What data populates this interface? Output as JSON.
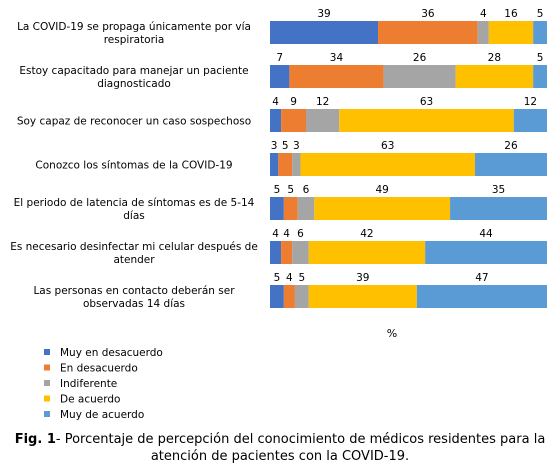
{
  "chart_data": {
    "type": "bar",
    "orientation": "horizontal",
    "stacked": true,
    "xlabel": "%",
    "xlim": [
      0,
      100
    ],
    "grid": false,
    "legend_position": "bottom-left",
    "categories": [
      "La COVID-19 se propaga únicamente por vía respiratoria",
      "Estoy capacitado para manejar un paciente diagnosticado",
      "Soy capaz de reconocer un caso sospechoso",
      "Conozco los síntomas de la COVID-19",
      "El periodo de latencia de síntomas es de 5-14 días",
      "Es necesario desinfectar mi celular después de atender",
      "Las personas en contacto deberán ser observadas 14 días"
    ],
    "series": [
      {
        "name": "Muy en desacuerdo",
        "color": "#4472C4",
        "values": [
          39,
          7,
          4,
          3,
          5,
          4,
          5
        ]
      },
      {
        "name": "En desacuerdo",
        "color": "#ED7D31",
        "values": [
          36,
          34,
          9,
          5,
          5,
          4,
          4
        ]
      },
      {
        "name": "Indiferente",
        "color": "#A5A5A5",
        "values": [
          4,
          26,
          12,
          3,
          6,
          6,
          5
        ]
      },
      {
        "name": "De acuerdo",
        "color": "#FFC000",
        "values": [
          16,
          28,
          63,
          63,
          49,
          42,
          39
        ]
      },
      {
        "name": "Muy de acuerdo",
        "color": "#5B9BD5",
        "values": [
          5,
          5,
          12,
          26,
          35,
          44,
          47
        ]
      }
    ]
  },
  "caption": {
    "label": "Fig. 1",
    "text": "- Porcentaje de percepción del conocimiento de médicos residentes para la atención de pacientes con la COVID-19."
  }
}
